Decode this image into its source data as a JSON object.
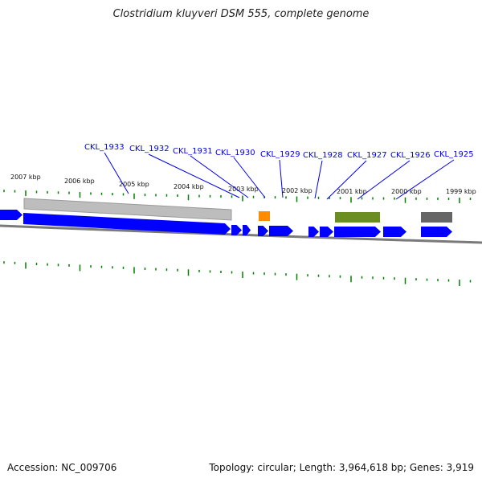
{
  "title": "Clostridium kluyveri DSM 555, complete genome",
  "footer": {
    "accession": "Accession: NC_009706",
    "summary": "Topology: circular; Length: 3,964,618 bp; Genes: 3,919"
  },
  "colors": {
    "gene": "#0000ff",
    "label": "#0000ee",
    "tick": "#008000",
    "grey_feature": "#bdbdbd",
    "dark_feature": "#666666",
    "olive_feature": "#6b8e23",
    "orange_feature": "#ff8c00",
    "backbone": "#7a7a7a"
  },
  "ruler_labels": [
    "2007 kbp",
    "2006 kbp",
    "2005 kbp",
    "2004 kbp",
    "2003 kbp",
    "2002 kbp",
    "2001 kbp",
    "2000 kbp",
    "1999 kbp"
  ],
  "gene_labels": [
    "CKL_1933",
    "CKL_1932",
    "CKL_1931",
    "CKL_1930",
    "CKL_1929",
    "CKL_1928",
    "CKL_1927",
    "CKL_1926",
    "CKL_1925"
  ]
}
